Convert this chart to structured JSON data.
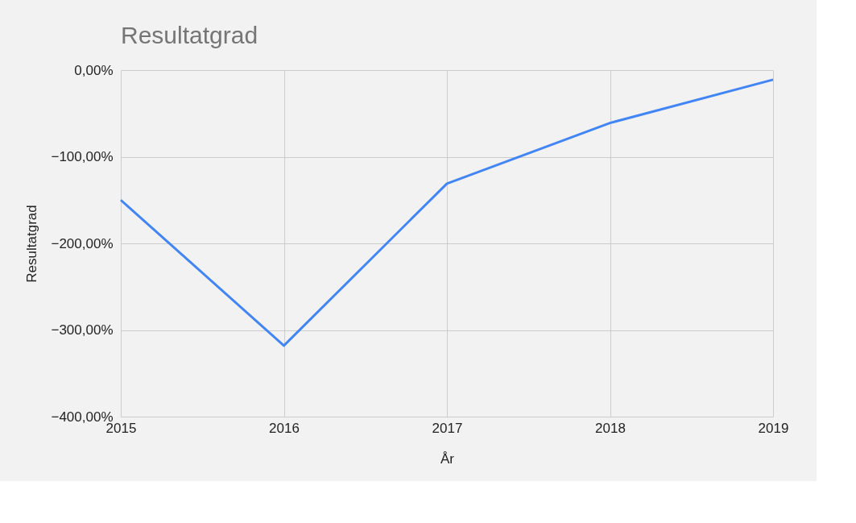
{
  "chart_data": {
    "type": "line",
    "title": "Resultatgrad",
    "xlabel": "År",
    "ylabel": "Resultatgrad",
    "x": [
      2015,
      2016,
      2017,
      2018,
      2019
    ],
    "series": [
      {
        "color": "#4285f4",
        "values": [
          -150,
          -318,
          -131,
          -61,
          -11
        ]
      }
    ],
    "xlim": [
      2015,
      2019
    ],
    "xticks": [
      2015,
      2016,
      2017,
      2018,
      2019
    ],
    "ylim": [
      -400,
      0
    ],
    "yticks": [
      {
        "value": -400,
        "label": "−400,00%"
      },
      {
        "value": -300,
        "label": "−300,00%"
      },
      {
        "value": -200,
        "label": "−200,00%"
      },
      {
        "value": -100,
        "label": "−100,00%"
      },
      {
        "value": 0,
        "label": "0,00%"
      }
    ],
    "grid": true,
    "marker": "none",
    "line_style": "solid"
  }
}
